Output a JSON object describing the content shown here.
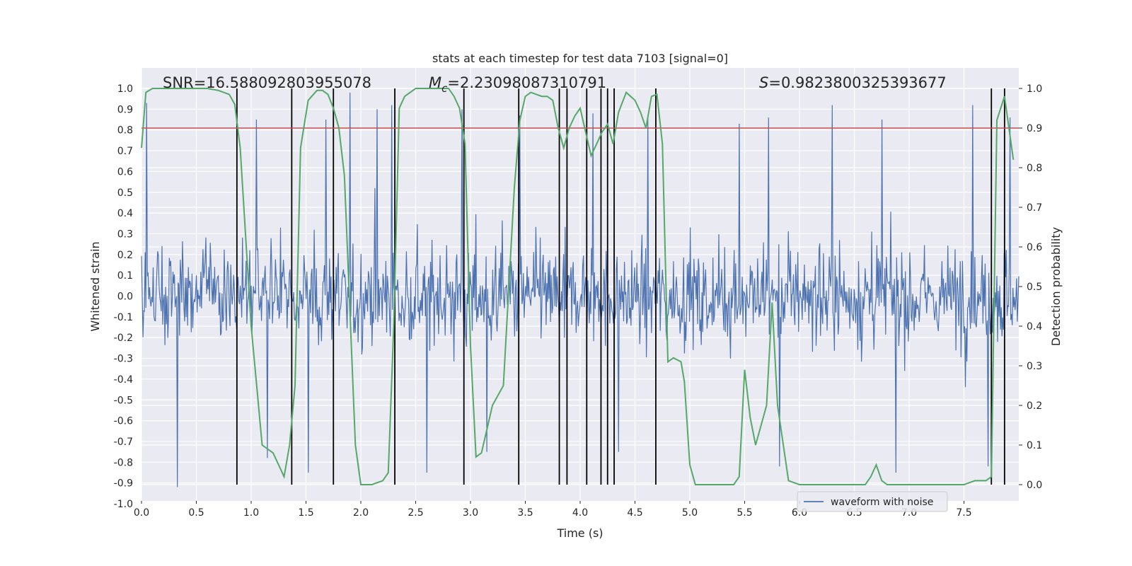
{
  "chart_data": {
    "type": "line",
    "title": "stats at each timestep for test data 7103 [signal=0]",
    "xlabel": "Time (s)",
    "ylabel": "Whitened strain",
    "y2label": "Detection probability",
    "xlim": [
      0.0,
      8.0
    ],
    "ylim": [
      -1.0,
      1.0
    ],
    "y2lim": [
      -0.04,
      1.04
    ],
    "xticks": [
      0.0,
      0.5,
      1.0,
      1.5,
      2.0,
      2.5,
      3.0,
      3.5,
      4.0,
      4.5,
      5.0,
      5.5,
      6.0,
      6.5,
      7.0,
      7.5
    ],
    "yticks": [
      -1.0,
      -0.9,
      -0.8,
      -0.7,
      -0.6,
      -0.5,
      -0.4,
      -0.3,
      -0.2,
      -0.1,
      0.0,
      0.1,
      0.2,
      0.3,
      0.4,
      0.5,
      0.6,
      0.7,
      0.8,
      0.9,
      1.0
    ],
    "y2ticks": [
      0.0,
      0.1,
      0.2,
      0.3,
      0.4,
      0.5,
      0.6,
      0.7,
      0.8,
      0.9,
      1.0
    ],
    "grid": true,
    "annotations": {
      "snr": "SNR=16.588092803955078",
      "mc_prefix": "M",
      "mc_sub": "c",
      "mc_value": "=2.23098087310791",
      "s_prefix": "S",
      "s_value": "=0.9823800325393677"
    },
    "legend": {
      "label": "waveform with noise",
      "position": "lower-right"
    },
    "threshold": {
      "value": 0.9,
      "axis": "right",
      "color": "#c44e52"
    },
    "event_markers": [
      0.87,
      1.37,
      1.75,
      2.31,
      2.94,
      3.44,
      3.81,
      3.88,
      4.06,
      4.19,
      4.25,
      4.31,
      4.69,
      7.75,
      7.87
    ],
    "waveform": {
      "name": "waveform with noise",
      "color": "#4c72b0",
      "n_points": 1200,
      "typical_amplitude": 0.35,
      "spike_peaks": [
        [
          0.05,
          0.93
        ],
        [
          0.33,
          -0.92
        ],
        [
          1.05,
          0.85
        ],
        [
          1.15,
          -0.78
        ],
        [
          1.52,
          -0.85
        ],
        [
          1.68,
          0.85
        ],
        [
          1.9,
          0.98
        ],
        [
          2.15,
          0.9
        ],
        [
          2.28,
          0.92
        ],
        [
          2.6,
          -0.85
        ],
        [
          2.92,
          0.9
        ],
        [
          3.15,
          -0.75
        ],
        [
          3.45,
          0.87
        ],
        [
          4.12,
          0.88
        ],
        [
          4.35,
          -0.75
        ],
        [
          4.62,
          0.87
        ],
        [
          5.45,
          0.83
        ],
        [
          5.72,
          0.86
        ],
        [
          5.82,
          -0.82
        ],
        [
          6.3,
          0.92
        ],
        [
          6.75,
          0.85
        ],
        [
          6.88,
          -0.85
        ],
        [
          7.58,
          0.92
        ],
        [
          7.72,
          -0.82
        ],
        [
          7.92,
          0.86
        ]
      ]
    },
    "detection_probability": {
      "color": "#55a868",
      "x": [
        0.0,
        0.04,
        0.1,
        0.2,
        0.4,
        0.6,
        0.7,
        0.8,
        0.85,
        0.9,
        1.0,
        1.05,
        1.1,
        1.2,
        1.25,
        1.3,
        1.35,
        1.4,
        1.45,
        1.52,
        1.6,
        1.65,
        1.7,
        1.75,
        1.8,
        1.85,
        1.95,
        2.0,
        2.05,
        2.1,
        2.2,
        2.25,
        2.3,
        2.35,
        2.4,
        2.45,
        2.5,
        2.6,
        2.7,
        2.8,
        2.85,
        2.9,
        2.95,
        3.0,
        3.05,
        3.1,
        3.15,
        3.2,
        3.3,
        3.4,
        3.45,
        3.5,
        3.55,
        3.65,
        3.7,
        3.75,
        3.8,
        3.85,
        3.9,
        3.95,
        4.0,
        4.1,
        4.15,
        4.2,
        4.25,
        4.3,
        4.35,
        4.42,
        4.5,
        4.55,
        4.6,
        4.65,
        4.7,
        4.75,
        4.8,
        4.85,
        4.92,
        4.95,
        5.0,
        5.05,
        5.2,
        5.3,
        5.4,
        5.45,
        5.5,
        5.55,
        5.6,
        5.7,
        5.75,
        5.8,
        5.9,
        6.0,
        6.2,
        6.4,
        6.55,
        6.6,
        6.65,
        6.7,
        6.75,
        6.8,
        6.9,
        7.0,
        7.2,
        7.4,
        7.5,
        7.6,
        7.7,
        7.75,
        7.8,
        7.87,
        7.95
      ],
      "y": [
        0.85,
        0.99,
        1.0,
        1.0,
        1.0,
        1.0,
        0.995,
        0.985,
        0.96,
        0.85,
        0.4,
        0.25,
        0.1,
        0.08,
        0.05,
        0.02,
        0.1,
        0.25,
        0.85,
        0.97,
        0.995,
        0.995,
        0.985,
        0.95,
        0.9,
        0.78,
        0.1,
        0.0,
        0.0,
        0.0,
        0.01,
        0.03,
        0.4,
        0.95,
        0.98,
        0.99,
        1.0,
        1.0,
        1.0,
        1.0,
        0.98,
        0.95,
        0.86,
        0.35,
        0.07,
        0.08,
        0.14,
        0.2,
        0.25,
        0.75,
        0.92,
        0.98,
        0.99,
        0.98,
        0.98,
        0.97,
        0.9,
        0.85,
        0.9,
        0.93,
        0.95,
        0.83,
        0.86,
        0.89,
        0.91,
        0.86,
        0.94,
        0.99,
        0.97,
        0.94,
        0.9,
        0.98,
        0.985,
        0.86,
        0.31,
        0.32,
        0.31,
        0.26,
        0.05,
        0.0,
        0.0,
        0.0,
        0.0,
        0.02,
        0.29,
        0.17,
        0.1,
        0.2,
        0.46,
        0.2,
        0.01,
        0.0,
        0.0,
        0.0,
        0.0,
        0.0,
        0.02,
        0.05,
        0.01,
        0.0,
        0.0,
        0.0,
        0.0,
        0.0,
        0.0,
        0.01,
        0.01,
        0.02,
        0.92,
        0.98,
        0.82
      ]
    }
  }
}
